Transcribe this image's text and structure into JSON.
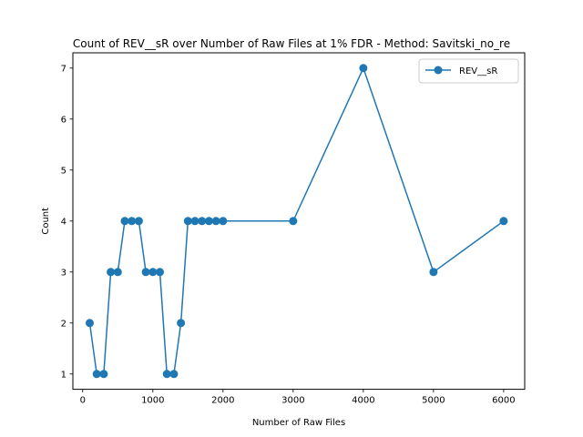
{
  "chart_data": {
    "type": "line",
    "title": "Count of REV__sR over Number of Raw Files at 1% FDR - Method: Savitski_no_re",
    "xlabel": "Number of Raw Files",
    "ylabel": "Count",
    "xlim": [
      -140,
      6300
    ],
    "ylim": [
      0.7,
      7.3
    ],
    "xticks": [
      0,
      1000,
      2000,
      3000,
      4000,
      5000,
      6000
    ],
    "yticks": [
      1,
      2,
      3,
      4,
      5,
      6,
      7
    ],
    "grid": false,
    "legend_position": "upper right",
    "colors": {
      "series": "#1f77b4"
    },
    "series": [
      {
        "name": "REV__sR",
        "marker": "circle",
        "x": [
          100,
          200,
          300,
          400,
          500,
          600,
          700,
          800,
          900,
          1000,
          1100,
          1200,
          1300,
          1400,
          1500,
          1600,
          1700,
          1800,
          1900,
          2000,
          3000,
          4000,
          5000,
          6000
        ],
        "y": [
          2,
          1,
          1,
          3,
          3,
          4,
          4,
          4,
          3,
          3,
          3,
          1,
          1,
          2,
          4,
          4,
          4,
          4,
          4,
          4,
          4,
          7,
          3,
          4
        ]
      }
    ]
  }
}
